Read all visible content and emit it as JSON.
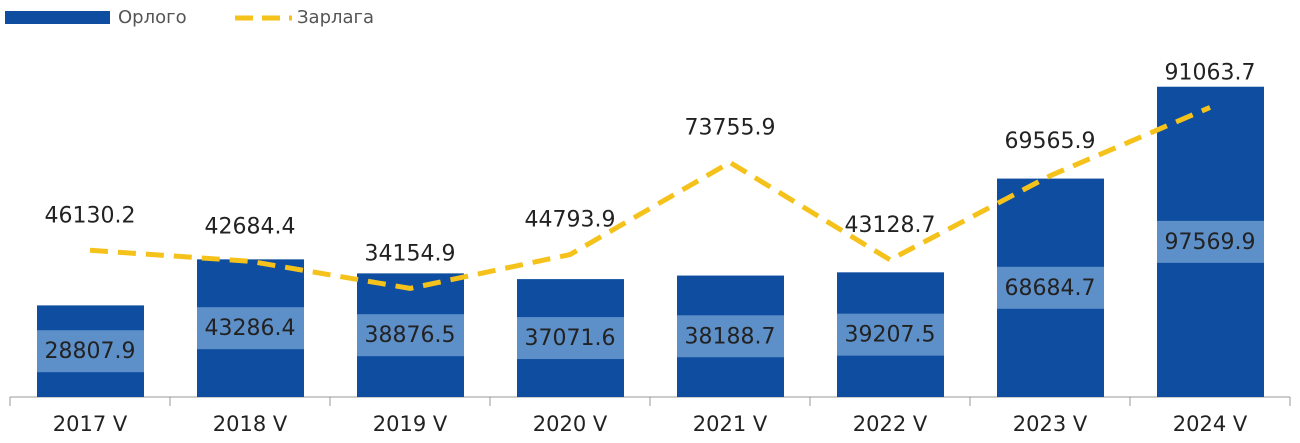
{
  "chart_data": {
    "type": "bar-line",
    "categories": [
      "2017 V",
      "2018 V",
      "2019 V",
      "2020 V",
      "2021 V",
      "2022 V",
      "2023 V",
      "2024 V"
    ],
    "series": [
      {
        "name": "Орлого",
        "type": "bar",
        "color": "#0e4d9f",
        "values": [
          28807.9,
          43286.4,
          38876.5,
          37071.6,
          38188.7,
          39207.5,
          68684.7,
          97569.9
        ]
      },
      {
        "name": "Зарлага",
        "type": "line",
        "color": "#f5c21b",
        "values": [
          46130.2,
          42684.4,
          34154.9,
          44793.9,
          73755.9,
          43128.7,
          69565.9,
          91063.7
        ]
      }
    ],
    "ylim": [
      0,
      100000
    ],
    "legend": "top-left"
  }
}
